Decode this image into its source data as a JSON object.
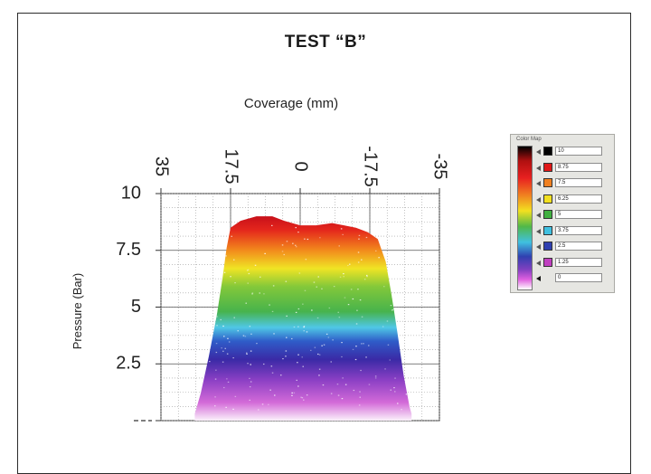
{
  "page": {
    "title": "TEST “B”"
  },
  "chart_data": {
    "type": "heatmap",
    "title": "TEST “B”",
    "xlabel": "Coverage (mm)",
    "ylabel": "Pressure (Bar)",
    "x_ticks": [
      "35",
      "17.5",
      "0",
      "-17.5",
      "-35"
    ],
    "y_ticks": [
      "10",
      "7.5",
      "5",
      "2.5"
    ],
    "xlim": [
      35,
      -35
    ],
    "ylim": [
      0,
      10
    ],
    "grid": true,
    "profile": [
      {
        "coverage": 26.5,
        "pressure": 0.3
      },
      {
        "coverage": 25.0,
        "pressure": 1.2
      },
      {
        "coverage": 23.0,
        "pressure": 2.8
      },
      {
        "coverage": 21.0,
        "pressure": 4.6
      },
      {
        "coverage": 19.5,
        "pressure": 6.3
      },
      {
        "coverage": 18.5,
        "pressure": 7.6
      },
      {
        "coverage": 17.5,
        "pressure": 8.5
      },
      {
        "coverage": 15.0,
        "pressure": 8.8
      },
      {
        "coverage": 11.0,
        "pressure": 9.0
      },
      {
        "coverage": 7.0,
        "pressure": 9.0
      },
      {
        "coverage": 4.0,
        "pressure": 8.8
      },
      {
        "coverage": 0.0,
        "pressure": 8.6
      },
      {
        "coverage": -4.0,
        "pressure": 8.6
      },
      {
        "coverage": -8.0,
        "pressure": 8.7
      },
      {
        "coverage": -11.0,
        "pressure": 8.6
      },
      {
        "coverage": -14.0,
        "pressure": 8.5
      },
      {
        "coverage": -17.0,
        "pressure": 8.3
      },
      {
        "coverage": -19.5,
        "pressure": 8.0
      },
      {
        "coverage": -21.5,
        "pressure": 7.0
      },
      {
        "coverage": -23.0,
        "pressure": 5.5
      },
      {
        "coverage": -24.5,
        "pressure": 3.8
      },
      {
        "coverage": -26.0,
        "pressure": 2.0
      },
      {
        "coverage": -27.5,
        "pressure": 0.6
      },
      {
        "coverage": -28.0,
        "pressure": 0.3
      }
    ],
    "legend": {
      "title": "Color Map",
      "placement": "right",
      "items": [
        {
          "value": "10",
          "color": "#000000"
        },
        {
          "value": "8.75",
          "color": "#e01818"
        },
        {
          "value": "7.5",
          "color": "#f08020"
        },
        {
          "value": "6.25",
          "color": "#f2e020"
        },
        {
          "value": "5",
          "color": "#40b040"
        },
        {
          "value": "3.75",
          "color": "#40c0e0"
        },
        {
          "value": "2.5",
          "color": "#3040b0"
        },
        {
          "value": "1.25",
          "color": "#c040c0"
        },
        {
          "value": "0",
          "color": "#ffffff"
        }
      ]
    },
    "color_scale": [
      {
        "pressure": 0,
        "color": "#fbf2fb"
      },
      {
        "pressure": 0.8,
        "color": "#d36ad8"
      },
      {
        "pressure": 1.8,
        "color": "#8a3fc4"
      },
      {
        "pressure": 2.7,
        "color": "#3a2aa6"
      },
      {
        "pressure": 3.5,
        "color": "#2f5cc8"
      },
      {
        "pressure": 4.1,
        "color": "#4fc7e6"
      },
      {
        "pressure": 4.8,
        "color": "#47b34c"
      },
      {
        "pressure": 5.9,
        "color": "#83c83a"
      },
      {
        "pressure": 6.7,
        "color": "#f0e424"
      },
      {
        "pressure": 7.5,
        "color": "#f28a1c"
      },
      {
        "pressure": 8.4,
        "color": "#e4261c"
      },
      {
        "pressure": 9.0,
        "color": "#c8101a"
      }
    ]
  }
}
